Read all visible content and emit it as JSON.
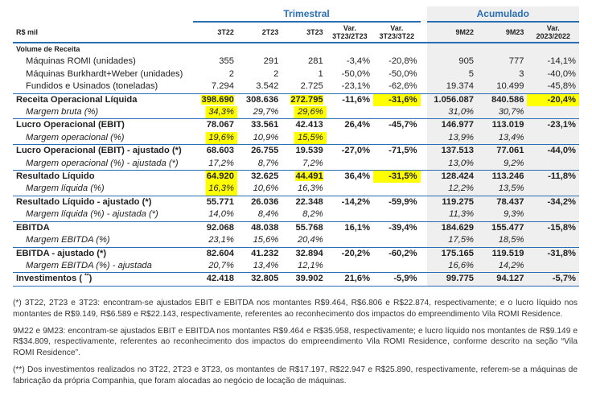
{
  "groups": {
    "trimestral": "Trimestral",
    "acumulado": "Acumulado"
  },
  "columns": {
    "label": "R$ mil",
    "q1": "3T22",
    "q2": "2T23",
    "q3": "3T23",
    "var1a": "Var.",
    "var1b": "3T23/2T23",
    "var2a": "Var.",
    "var2b": "3T23/3T22",
    "a1": "9M22",
    "a2": "9M23",
    "var3a": "Var.",
    "var3b": "2023/2022"
  },
  "rows": [
    {
      "label": "Volume de Receita",
      "v": [
        "",
        "",
        "",
        "",
        "",
        "",
        "",
        ""
      ]
    },
    {
      "label": "Máquinas ROMI (unidades)",
      "v": [
        "355",
        "291",
        "281",
        "-3,4%",
        "-20,8%",
        "905",
        "777",
        "-14,1%"
      ]
    },
    {
      "label": "Máquinas Burkhardt+Weber (unidades)",
      "v": [
        "2",
        "2",
        "1",
        "-50,0%",
        "-50,0%",
        "5",
        "3",
        "-40,0%"
      ]
    },
    {
      "label": "Fundidos e Usinados (toneladas)",
      "v": [
        "7.294",
        "3.542",
        "2.725",
        "-23,1%",
        "-62,6%",
        "19.374",
        "10.499",
        "-45,8%"
      ]
    },
    {
      "label": "Receita Operacional Líquida",
      "v": [
        "398.690",
        "308.636",
        "272.795",
        "-11,6%",
        "-31,6%",
        "1.056.087",
        "840.586",
        "-20,4%"
      ]
    },
    {
      "label": "Margem bruta (%)",
      "v": [
        "34,3%",
        "29,7%",
        "29,6%",
        "",
        "",
        "31,0%",
        "30,7%",
        ""
      ]
    },
    {
      "label": "Lucro Operacional (EBIT)",
      "v": [
        "78.067",
        "33.561",
        "42.413",
        "26,4%",
        "-45,7%",
        "146.977",
        "113.019",
        "-23,1%"
      ]
    },
    {
      "label": "Margem operacional (%)",
      "v": [
        "19,6%",
        "10,9%",
        "15,5%",
        "",
        "",
        "13,9%",
        "13,4%",
        ""
      ]
    },
    {
      "label": "Lucro Operacional (EBIT) - ajustado (*)",
      "v": [
        "68.603",
        "26.755",
        "19.539",
        "-27,0%",
        "-71,5%",
        "137.513",
        "77.061",
        "-44,0%"
      ]
    },
    {
      "label": "Margem operacional (%) - ajustada (*)",
      "v": [
        "17,2%",
        "8,7%",
        "7,2%",
        "",
        "",
        "13,0%",
        "9,2%",
        ""
      ]
    },
    {
      "label": "Resultado Líquido",
      "v": [
        "64.920",
        "32.625",
        "44.491",
        "36,4%",
        "-31,5%",
        "128.424",
        "113.246",
        "-11,8%"
      ]
    },
    {
      "label": "Margem líquida (%)",
      "v": [
        "16,3%",
        "10,6%",
        "16,3%",
        "",
        "",
        "12,2%",
        "13,5%",
        ""
      ]
    },
    {
      "label": "Resultado Líquido - ajustado (*)",
      "v": [
        "55.771",
        "26.036",
        "22.348",
        "-14,2%",
        "-59,9%",
        "119.275",
        "78.437",
        "-34,2%"
      ]
    },
    {
      "label": "Margem líquida (%) - ajustada (*)",
      "v": [
        "14,0%",
        "8,4%",
        "8,2%",
        "",
        "",
        "11,3%",
        "9,3%",
        ""
      ]
    },
    {
      "label": "EBITDA",
      "v": [
        "92.068",
        "48.038",
        "55.768",
        "16,1%",
        "-39,4%",
        "184.629",
        "155.477",
        "-15,8%"
      ]
    },
    {
      "label": "Margem EBITDA (%)",
      "v": [
        "23,1%",
        "15,6%",
        "20,4%",
        "",
        "",
        "17,5%",
        "18,5%",
        ""
      ]
    },
    {
      "label": "EBITDA - ajustado (*)",
      "v": [
        "82.604",
        "41.232",
        "32.894",
        "-20,2%",
        "-60,2%",
        "175.165",
        "119.519",
        "-31,8%"
      ]
    },
    {
      "label": "Margem EBITDA (%) - ajustada",
      "v": [
        "20,7%",
        "13,4%",
        "12,1%",
        "",
        "",
        "16,6%",
        "14,2%",
        ""
      ]
    },
    {
      "label": "Investimentos (",
      "sup": "**",
      "label_end": ")",
      "v": [
        "42.418",
        "32.805",
        "39.902",
        "21,6%",
        "-5,9%",
        "99.775",
        "94.127",
        "-5,7%"
      ]
    }
  ],
  "notes": {
    "n1": "(*) 3T22, 2T23 e 3T23: encontram-se ajustados EBIT e EBITDA nos montantes R$9.464, R$6.806 e R$22.874, respectivamente; e o lucro líquido nos montantes de R$9.149, R$6.589 e R$22.143, respectivamente, referentes ao reconhecimento dos impactos do empreendimento Vila ROMI Residence.",
    "n2": "9M22 e 9M23: encontram-se ajustados EBIT e EBITDA nos montantes R$9.464 e R$35.958, respectivamente; e lucro líquido nos montantes de R$9.149 e R$34.809, respectivamente, referentes ao reconhecimento dos impactos do empreendimento Vila ROMI Residence, conforme descrito na seção “Vila ROMI Residence”.",
    "n3": "(**) Dos investimentos realizados no 3T22, 2T23 e 3T23, os montantes de R$17.197, R$22.947 e R$25.890, respectivamente, referem-se a máquinas de fabricação da própria Companhia, que foram alocadas ao negócio de locação de máquinas."
  }
}
